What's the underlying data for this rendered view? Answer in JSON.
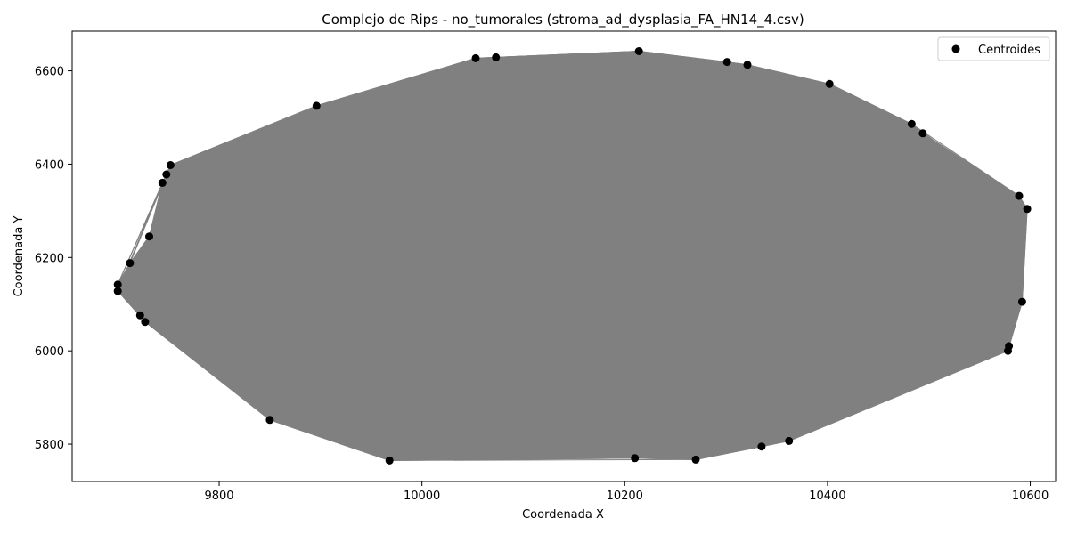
{
  "chart_data": {
    "type": "scatter",
    "title": "Complejo de Rips - no_tumorales (stroma_ad_dysplasia_FA_HN14_4.csv)",
    "xlabel": "Coordenada X",
    "ylabel": "Coordenada Y",
    "xlim": [
      9655,
      10625
    ],
    "ylim": [
      5720,
      6685
    ],
    "xticks": [
      9800,
      10000,
      10200,
      10400,
      10600
    ],
    "yticks": [
      5800,
      6000,
      6200,
      6400,
      6600
    ],
    "legend": {
      "position": "top-right",
      "entries": [
        "Centroides"
      ]
    },
    "grid": false,
    "colors": {
      "points": "#000000",
      "edges": "#808080",
      "axes": "#000000"
    },
    "series": [
      {
        "name": "Centroides",
        "points": [
          [
            9700,
            6142
          ],
          [
            9700,
            6128
          ],
          [
            9712,
            6188
          ],
          [
            9722,
            6076
          ],
          [
            9727,
            6062
          ],
          [
            9731,
            6245
          ],
          [
            9744,
            6360
          ],
          [
            9748,
            6378
          ],
          [
            9752,
            6398
          ],
          [
            9850,
            5852
          ],
          [
            9896,
            6525
          ],
          [
            9968,
            5765
          ],
          [
            10053,
            6627
          ],
          [
            10073,
            6629
          ],
          [
            10210,
            5770
          ],
          [
            10214,
            6642
          ],
          [
            10270,
            5767
          ],
          [
            10301,
            6619
          ],
          [
            10321,
            6613
          ],
          [
            10335,
            5795
          ],
          [
            10362,
            5807
          ],
          [
            10402,
            6572
          ],
          [
            10483,
            6486
          ],
          [
            10494,
            6466
          ],
          [
            10579,
            6010
          ],
          [
            10578,
            6000
          ],
          [
            10589,
            6332
          ],
          [
            10592,
            6105
          ],
          [
            10597,
            6304
          ]
        ]
      }
    ]
  }
}
